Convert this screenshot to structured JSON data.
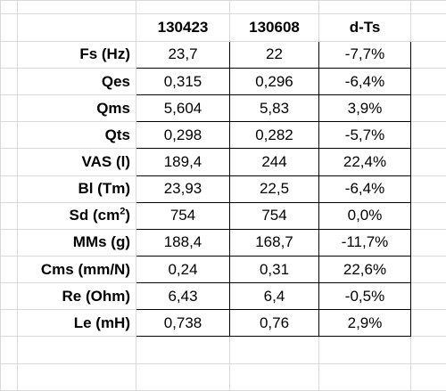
{
  "header": {
    "col_a": "130423",
    "col_b": "130608",
    "col_c": "d-Ts"
  },
  "rows": [
    {
      "label": "Fs (Hz)",
      "a": "23,7",
      "b": "22",
      "c": "-7,7%"
    },
    {
      "label": "Qes",
      "a": "0,315",
      "b": "0,296",
      "c": "-6,4%"
    },
    {
      "label": "Qms",
      "a": "5,604",
      "b": "5,83",
      "c": "3,9%"
    },
    {
      "label": "Qts",
      "a": "0,298",
      "b": "0,282",
      "c": "-5,7%"
    },
    {
      "label": "VAS (l)",
      "a": "189,4",
      "b": "244",
      "c": "22,4%"
    },
    {
      "label": "Bl (Tm)",
      "a": "23,93",
      "b": "22,5",
      "c": "-6,4%"
    },
    {
      "label_base": "Sd (cm",
      "label_sup": "2",
      "label_tail": ")",
      "a": "754",
      "b": "754",
      "c": "0,0%"
    },
    {
      "label": "MMs (g)",
      "a": "188,4",
      "b": "168,7",
      "c": "-11,7%"
    },
    {
      "label": "Cms (mm/N)",
      "a": "0,24",
      "b": "0,31",
      "c": "22,6%"
    },
    {
      "label": "Re (Ohm)",
      "a": "6,43",
      "b": "6,4",
      "c": "-0,5%"
    },
    {
      "label": "Le (mH)",
      "a": "0,738",
      "b": "0,76",
      "c": "2,9%"
    }
  ]
}
